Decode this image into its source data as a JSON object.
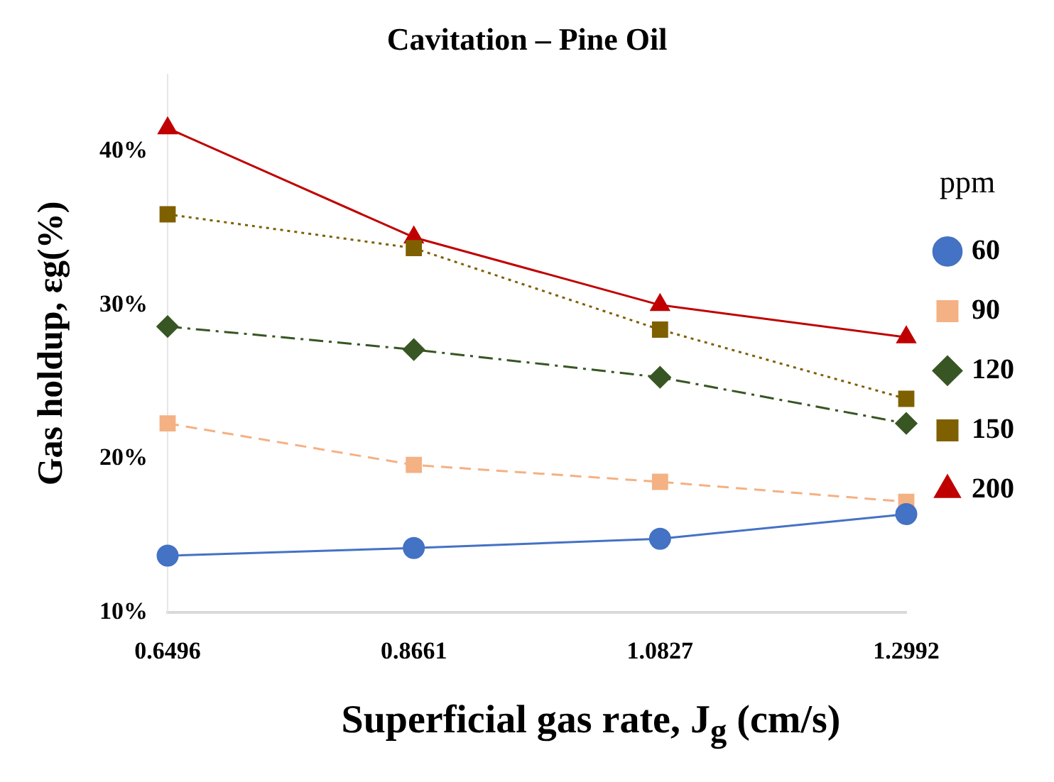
{
  "chart_data": {
    "type": "line",
    "title": "Cavitation – Pine Oil",
    "xlabel": "Superficial gas rate, J$_{g}$ (cm/s)",
    "ylabel": "Gas holdup, εg(%)",
    "legend_title": "ppm",
    "legend": "right",
    "grid": false,
    "categories": [
      "0.6496",
      "0.8661",
      "1.0827",
      "1.2992"
    ],
    "ylim": [
      10,
      45
    ],
    "yticks": [
      {
        "value": 10,
        "label": "10%"
      },
      {
        "value": 20,
        "label": "20%"
      },
      {
        "value": 30,
        "label": "30%"
      },
      {
        "value": 40,
        "label": "40%"
      }
    ],
    "series": [
      {
        "name": "60",
        "color": "#4472c4",
        "values": [
          13.7,
          14.2,
          14.8,
          16.4
        ],
        "marker": "circle",
        "line_style": "solid"
      },
      {
        "name": "90",
        "color": "#f4b183",
        "values": [
          22.3,
          19.6,
          18.5,
          17.2
        ],
        "marker": "square",
        "line_style": "dashed"
      },
      {
        "name": "120",
        "color": "#375623",
        "values": [
          28.6,
          27.1,
          25.3,
          22.3
        ],
        "marker": "diamond",
        "line_style": "dashdot"
      },
      {
        "name": "150",
        "color": "#7f6000",
        "values": [
          35.9,
          33.7,
          28.4,
          23.9
        ],
        "marker": "square",
        "line_style": "dotted"
      },
      {
        "name": "200",
        "color": "#c00000",
        "values": [
          41.5,
          34.4,
          30.0,
          27.9
        ],
        "marker": "triangle",
        "line_style": "solid"
      }
    ]
  }
}
